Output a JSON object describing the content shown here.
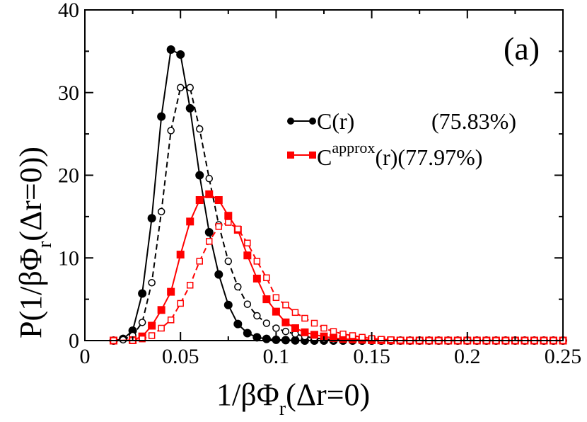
{
  "chart_data": {
    "type": "line",
    "panel_label": "(a)",
    "xlabel": {
      "main": "1/βΦ",
      "sub": "r",
      "tail": "(Δr=0)"
    },
    "ylabel": {
      "main": "P(1/βΦ",
      "sub": "r",
      "tail": "(Δr=0))"
    },
    "xlim": [
      0,
      0.25
    ],
    "ylim": [
      0,
      40
    ],
    "xticks": [
      0,
      0.05,
      0.1,
      0.15,
      0.2,
      0.25
    ],
    "xtick_labels": [
      "0",
      "0.05",
      "0.1",
      "0.15",
      "0.2",
      "0.25"
    ],
    "yticks": [
      0,
      10,
      20,
      30,
      40
    ],
    "ytick_labels": [
      "0",
      "10",
      "20",
      "30",
      "40"
    ],
    "legend": {
      "position": "top-right",
      "entries": [
        {
          "label_main": "C(r)",
          "label_sup": "",
          "label_after": "",
          "percent": "(75.83%)",
          "color": "#000000",
          "marker": "circle"
        },
        {
          "label_main": "C",
          "label_sup": "approx",
          "label_after": "(r)",
          "percent": "(77.97%)",
          "color": "#ff0000",
          "marker": "square"
        }
      ]
    },
    "series": [
      {
        "name": "C(r)",
        "color": "#000000",
        "marker": "circle",
        "filled": true,
        "dashed": false,
        "x": [
          0.015,
          0.02,
          0.025,
          0.03,
          0.035,
          0.04,
          0.045,
          0.05,
          0.055,
          0.06,
          0.065,
          0.07,
          0.075,
          0.08,
          0.085,
          0.09,
          0.095,
          0.1,
          0.105,
          0.11,
          0.115,
          0.12,
          0.125,
          0.13,
          0.135,
          0.14,
          0.145,
          0.15,
          0.155,
          0.16,
          0.165,
          0.17,
          0.175,
          0.18,
          0.185,
          0.19,
          0.195,
          0.2,
          0.205,
          0.21,
          0.215,
          0.22,
          0.225,
          0.23,
          0.235,
          0.24,
          0.245,
          0.25
        ],
        "y": [
          0,
          0.2,
          1.2,
          5.7,
          14.8,
          27.1,
          35.2,
          34.6,
          28.1,
          20.0,
          13.1,
          8.0,
          4.3,
          2.0,
          0.9,
          0.4,
          0.2,
          0.1,
          0.05,
          0.02,
          0,
          0,
          0,
          0,
          0,
          0,
          0,
          0,
          0,
          0,
          0,
          0,
          0,
          0,
          0,
          0,
          0,
          0,
          0,
          0,
          0,
          0,
          0,
          0,
          0,
          0,
          0,
          0
        ]
      },
      {
        "name": "C(r) open",
        "color": "#000000",
        "marker": "circle",
        "filled": false,
        "dashed": true,
        "x": [
          0.015,
          0.02,
          0.025,
          0.03,
          0.035,
          0.04,
          0.045,
          0.05,
          0.055,
          0.06,
          0.065,
          0.07,
          0.075,
          0.08,
          0.085,
          0.09,
          0.095,
          0.1,
          0.105,
          0.11,
          0.115,
          0.12,
          0.125,
          0.13,
          0.135,
          0.14,
          0.145,
          0.15,
          0.155,
          0.16,
          0.165,
          0.17,
          0.175,
          0.18,
          0.185,
          0.19,
          0.195,
          0.2,
          0.205,
          0.21,
          0.215,
          0.22,
          0.225,
          0.23,
          0.235,
          0.24,
          0.245,
          0.25
        ],
        "y": [
          0,
          0.1,
          0.6,
          2.2,
          7.0,
          15.6,
          25.4,
          30.6,
          30.6,
          25.6,
          19.6,
          14.0,
          9.6,
          6.5,
          4.4,
          3.0,
          2.1,
          1.5,
          1.1,
          0.8,
          0.5,
          0.3,
          0.2,
          0.1,
          0.05,
          0.02,
          0,
          0,
          0,
          0,
          0,
          0,
          0,
          0,
          0,
          0,
          0,
          0,
          0,
          0,
          0,
          0,
          0,
          0,
          0,
          0,
          0,
          0
        ]
      },
      {
        "name": "C^approx(r)",
        "color": "#ff0000",
        "marker": "square",
        "filled": true,
        "dashed": false,
        "x": [
          0.015,
          0.025,
          0.03,
          0.035,
          0.04,
          0.045,
          0.05,
          0.055,
          0.06,
          0.065,
          0.07,
          0.075,
          0.08,
          0.085,
          0.09,
          0.095,
          0.1,
          0.105,
          0.11,
          0.115,
          0.12,
          0.125,
          0.13,
          0.135,
          0.14,
          0.145,
          0.15,
          0.155,
          0.16,
          0.165,
          0.17,
          0.175,
          0.18,
          0.185,
          0.19,
          0.195,
          0.2,
          0.205,
          0.21,
          0.215,
          0.22,
          0.225,
          0.23,
          0.235,
          0.24,
          0.245,
          0.25
        ],
        "y": [
          0,
          0.05,
          0.5,
          1.8,
          3.7,
          5.9,
          10.4,
          14.4,
          17.0,
          17.7,
          17.0,
          15.1,
          13.4,
          10.3,
          7.5,
          5.0,
          3.5,
          2.2,
          1.5,
          1.0,
          0.7,
          0.5,
          0.3,
          0.2,
          0.15,
          0.1,
          0.05,
          0.03,
          0.02,
          0,
          0,
          0,
          0,
          0,
          0,
          0,
          0,
          0,
          0,
          0,
          0,
          0,
          0,
          0,
          0,
          0,
          0
        ]
      },
      {
        "name": "C^approx(r) open",
        "color": "#ff0000",
        "marker": "square",
        "filled": false,
        "dashed": true,
        "x": [
          0.015,
          0.025,
          0.03,
          0.035,
          0.04,
          0.045,
          0.05,
          0.055,
          0.06,
          0.065,
          0.07,
          0.075,
          0.08,
          0.085,
          0.09,
          0.095,
          0.1,
          0.105,
          0.11,
          0.115,
          0.12,
          0.125,
          0.13,
          0.135,
          0.14,
          0.145,
          0.15,
          0.155,
          0.16,
          0.165,
          0.17,
          0.175,
          0.18,
          0.185,
          0.19,
          0.195,
          0.2,
          0.205,
          0.21,
          0.215,
          0.22,
          0.225,
          0.23,
          0.235,
          0.24,
          0.245,
          0.25
        ],
        "y": [
          0,
          0.02,
          0.2,
          0.6,
          1.5,
          2.5,
          4.5,
          6.7,
          9.6,
          12.0,
          13.8,
          14.3,
          13.5,
          11.8,
          9.6,
          7.6,
          5.2,
          4.3,
          3.4,
          2.7,
          2.1,
          1.5,
          1.1,
          0.8,
          0.6,
          0.4,
          0.25,
          0.15,
          0.1,
          0.05,
          0.03,
          0.02,
          0,
          0,
          0,
          0,
          0,
          0,
          0,
          0,
          0,
          0,
          0,
          0,
          0,
          0,
          0
        ]
      }
    ]
  }
}
